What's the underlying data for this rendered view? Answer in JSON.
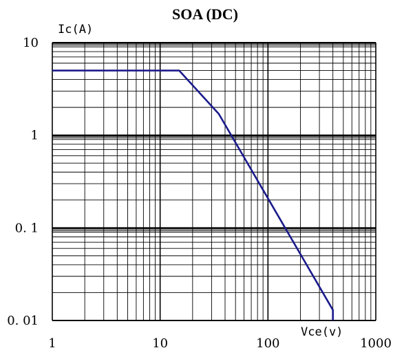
{
  "chart_data": {
    "type": "line",
    "title": "SOA (DC)",
    "ylabel": "Ic(A)",
    "xlabel": "Vce(v)",
    "x_scale": "log",
    "y_scale": "log",
    "xlim": [
      1,
      1000
    ],
    "ylim": [
      0.01,
      10
    ],
    "grid": true,
    "x_tick_labels": [
      "1",
      "10",
      "100",
      "1000"
    ],
    "y_tick_labels": [
      "10",
      "1",
      "0. 1",
      "0. 01"
    ],
    "x_tick_values": [
      1,
      10,
      100,
      1000
    ],
    "y_tick_values": [
      10,
      1,
      0.1,
      0.01
    ],
    "series": [
      {
        "line_color": "#1a1a8c",
        "x": [
          1,
          15,
          35,
          400,
          400
        ],
        "y": [
          5,
          5,
          1.7,
          0.013,
          0.01
        ]
      }
    ]
  }
}
